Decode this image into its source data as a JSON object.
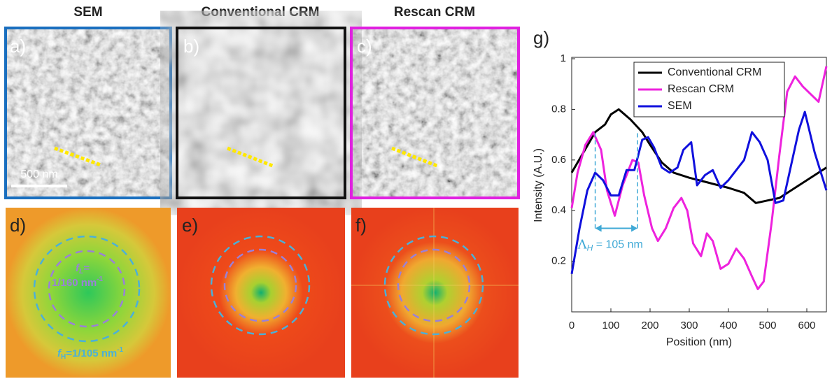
{
  "panels": {
    "headers": [
      "SEM",
      "Conventional CRM",
      "Rescan CRM"
    ],
    "labels": [
      "a)",
      "b)",
      "c)",
      "d)",
      "e)",
      "f)",
      "g)"
    ],
    "scale_bar": "500 nm",
    "fft_low": {
      "symbol": "f",
      "sub": "L",
      "eq": "=",
      "value": "1/160 nm",
      "exp": "-1"
    },
    "fft_high": {
      "symbol": "f",
      "sub": "H",
      "value": "=1/105 nm",
      "exp": "-1"
    }
  },
  "chart_data": {
    "type": "line",
    "xlabel": "Position (nm)",
    "ylabel": "Intensity (A.U.)",
    "xlim": [
      0,
      650
    ],
    "xticks": [
      0,
      100,
      200,
      300,
      400,
      500,
      600
    ],
    "ylim": [
      0,
      1
    ],
    "yticks": [
      0.2,
      0.4,
      0.6,
      0.8,
      1
    ],
    "legend": "top",
    "annotation": {
      "symbol": "Λ",
      "sub": "H",
      "text": " = 105 nm",
      "color": "#3fa9d6",
      "x": [
        60,
        168
      ],
      "y": 0.33
    },
    "series": [
      {
        "name": "Conventional CRM",
        "color": "#000000",
        "x": [
          0,
          30,
          60,
          85,
          100,
          120,
          150,
          180,
          200,
          230,
          260,
          300,
          350,
          400,
          440,
          470,
          500,
          530,
          570,
          610,
          650
        ],
        "values": [
          0.55,
          0.63,
          0.71,
          0.74,
          0.78,
          0.8,
          0.76,
          0.71,
          0.66,
          0.59,
          0.55,
          0.53,
          0.51,
          0.49,
          0.47,
          0.43,
          0.44,
          0.45,
          0.49,
          0.53,
          0.57
        ]
      },
      {
        "name": "Rescan CRM",
        "color": "#ee22dd",
        "x": [
          0,
          15,
          35,
          55,
          75,
          90,
          110,
          130,
          155,
          170,
          185,
          205,
          220,
          240,
          260,
          280,
          295,
          310,
          330,
          345,
          360,
          380,
          400,
          420,
          440,
          460,
          475,
          490,
          510,
          530,
          550,
          570,
          590,
          610,
          630,
          650
        ],
        "values": [
          0.41,
          0.55,
          0.66,
          0.71,
          0.64,
          0.48,
          0.38,
          0.5,
          0.6,
          0.59,
          0.46,
          0.33,
          0.28,
          0.33,
          0.41,
          0.45,
          0.4,
          0.27,
          0.22,
          0.31,
          0.28,
          0.17,
          0.19,
          0.25,
          0.21,
          0.14,
          0.09,
          0.12,
          0.35,
          0.62,
          0.87,
          0.93,
          0.89,
          0.86,
          0.83,
          0.97
        ]
      },
      {
        "name": "SEM",
        "color": "#1010dd",
        "x": [
          0,
          20,
          40,
          60,
          80,
          100,
          120,
          140,
          160,
          180,
          195,
          210,
          230,
          250,
          270,
          285,
          305,
          320,
          340,
          360,
          380,
          400,
          440,
          460,
          480,
          500,
          520,
          540,
          580,
          595,
          620,
          650
        ],
        "values": [
          0.15,
          0.33,
          0.48,
          0.55,
          0.52,
          0.46,
          0.46,
          0.56,
          0.56,
          0.68,
          0.69,
          0.65,
          0.57,
          0.55,
          0.57,
          0.64,
          0.67,
          0.5,
          0.54,
          0.56,
          0.49,
          0.52,
          0.6,
          0.71,
          0.67,
          0.6,
          0.43,
          0.44,
          0.72,
          0.79,
          0.63,
          0.48
        ]
      }
    ]
  }
}
